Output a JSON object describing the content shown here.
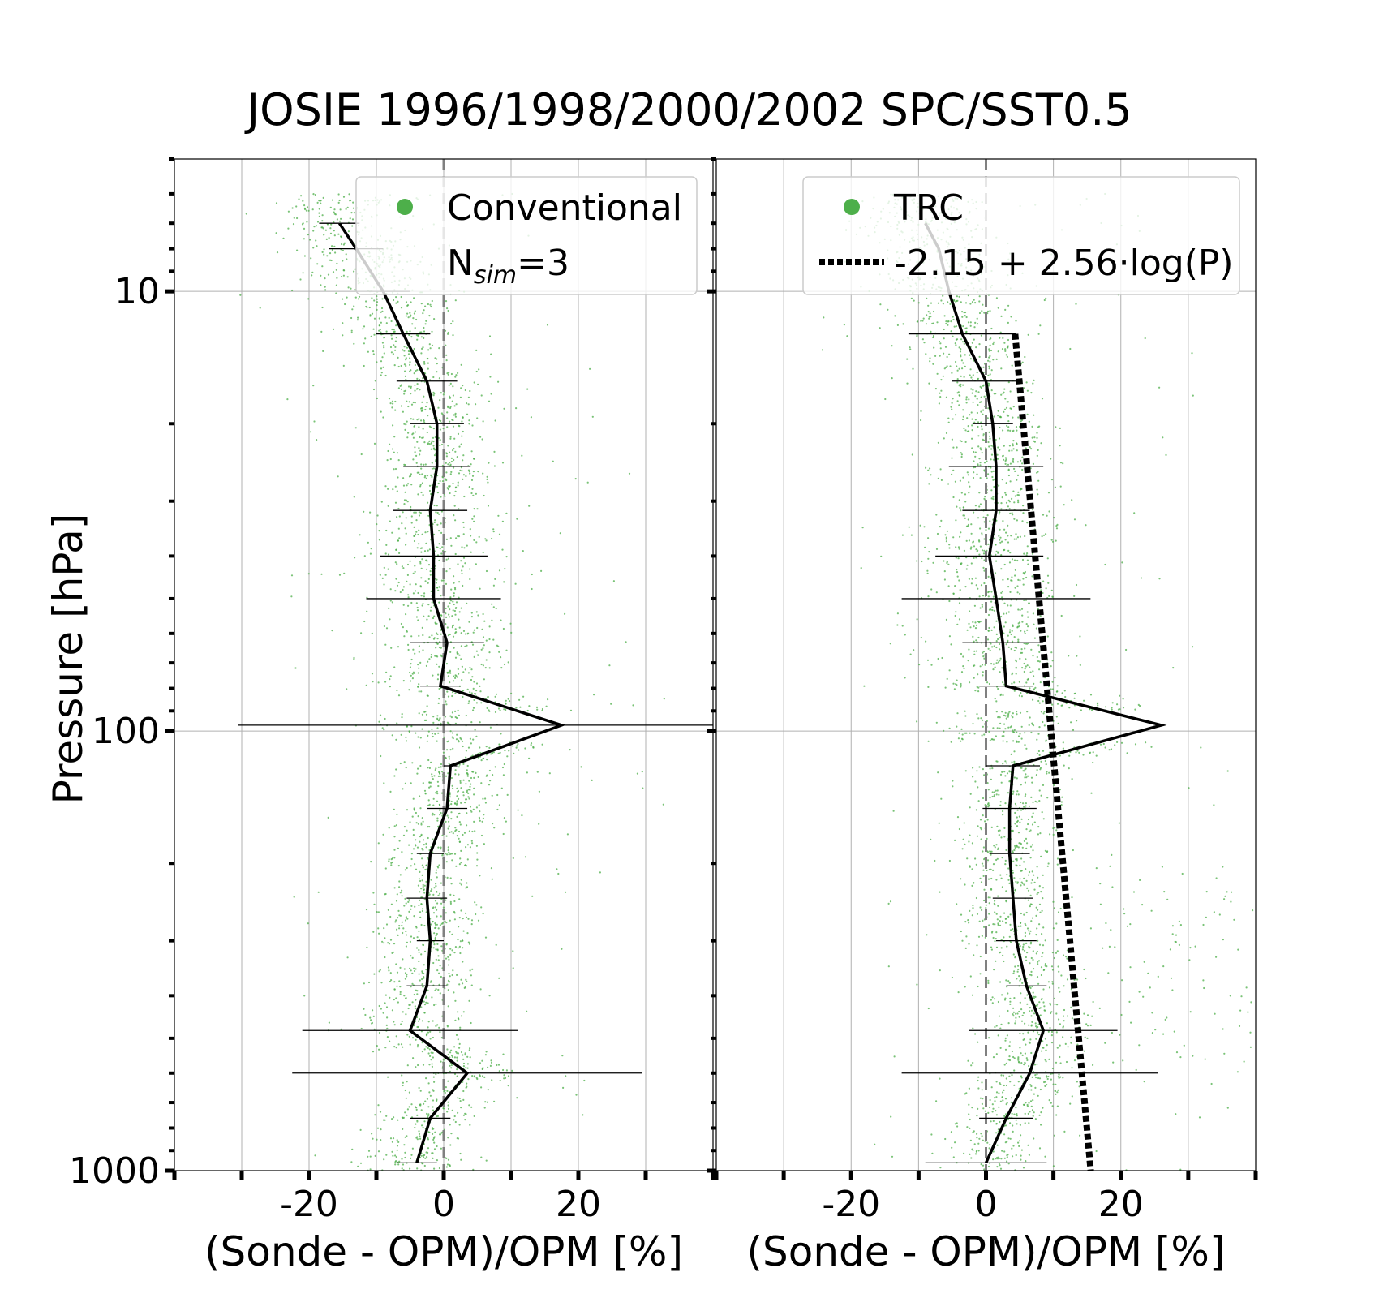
{
  "title": "JOSIE 1996/1998/2000/2002 SPC/SST0.5",
  "colors": {
    "points": "#4daf4a",
    "profile": "#000000",
    "fit": "#000000",
    "grid": "#b0b0b0",
    "zero_line": "#808080"
  },
  "chart_data": [
    {
      "type": "scatter",
      "panel": "left",
      "xlabel": "(Sonde - OPM)/OPM [%]",
      "ylabel": "Pressure [hPa]",
      "xlim": [
        -40,
        40
      ],
      "ylim": [
        1000,
        5
      ],
      "yscale": "log",
      "xticks": [
        -20,
        0,
        20
      ],
      "yticks": [
        10,
        100,
        1000
      ],
      "grid": true,
      "legend": {
        "placement": "top-right",
        "entries": [
          {
            "marker": "dot",
            "label": "Conventional"
          },
          {
            "marker": "none",
            "label": "N",
            "subscript": "sim",
            "suffix": "=3"
          }
        ]
      },
      "series": [
        {
          "kind": "median_profile_with_errorbars",
          "pressure": [
            7,
            8,
            10,
            12.5,
            16,
            20,
            25,
            31.5,
            40,
            50,
            63,
            79,
            97,
            120,
            150,
            190,
            240,
            300,
            380,
            480,
            600,
            760,
            960
          ],
          "median": [
            -15.5,
            -13,
            -9,
            -6,
            -2.5,
            -1,
            -1,
            -2,
            -1.5,
            -1.5,
            0.5,
            -0.5,
            17.5,
            1,
            0.5,
            -2,
            -2.5,
            -2,
            -2.5,
            -5,
            3.5,
            -2,
            -4
          ],
          "spread": [
            3,
            4,
            4,
            4,
            4.5,
            4,
            5,
            5.5,
            8,
            10,
            5.5,
            3,
            48,
            1,
            3,
            2,
            3,
            2,
            3,
            16,
            26,
            3,
            3
          ]
        }
      ],
      "scatter_count": 3000
    },
    {
      "type": "scatter",
      "panel": "right",
      "xlabel": "(Sonde - OPM)/OPM [%]",
      "xlim": [
        -40,
        40
      ],
      "ylim": [
        1000,
        5
      ],
      "yscale": "log",
      "xticks": [
        -20,
        0,
        20
      ],
      "grid": true,
      "legend": {
        "placement": "top-right",
        "entries": [
          {
            "marker": "dot",
            "label": "TRC"
          },
          {
            "marker": "dotted-line",
            "label": "-2.15 + 2.56·log(P)"
          }
        ]
      },
      "series": [
        {
          "kind": "median_profile_with_errorbars",
          "pressure": [
            7,
            8,
            10,
            12.5,
            16,
            20,
            25,
            31.5,
            40,
            50,
            63,
            79,
            97,
            120,
            150,
            190,
            240,
            300,
            380,
            480,
            600,
            760,
            960
          ],
          "median": [
            -9,
            -7,
            -5.5,
            -3.5,
            0,
            1,
            1.5,
            1.5,
            0.5,
            1.5,
            2.5,
            3,
            26,
            4,
            3.5,
            3.5,
            4,
            4.5,
            6,
            8.5,
            6.5,
            3,
            0
          ],
          "spread": [
            0,
            0,
            0,
            8,
            5,
            3,
            7,
            5,
            8,
            14,
            6,
            4,
            0,
            4,
            4,
            3,
            3,
            3,
            3,
            11,
            19,
            4,
            9
          ]
        },
        {
          "kind": "fit_line",
          "intercept": -2.15,
          "slope": 2.56,
          "pressure_range": [
            12.5,
            1000
          ]
        }
      ],
      "scatter_count": 3000
    }
  ]
}
